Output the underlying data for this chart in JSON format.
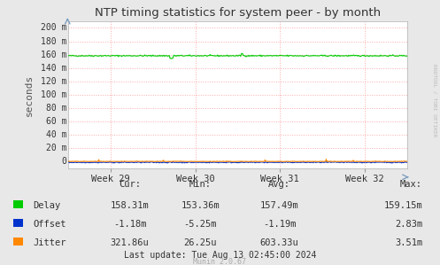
{
  "title": "NTP timing statistics for system peer - by month",
  "ylabel": "seconds",
  "background_color": "#e8e8e8",
  "plot_bg_color": "#ffffff",
  "grid_color": "#ffaaaa",
  "ylim": [
    -10,
    210
  ],
  "yticks": [
    0,
    20,
    40,
    60,
    80,
    100,
    120,
    140,
    160,
    180,
    200
  ],
  "ytick_labels": [
    "0",
    "20 m",
    "40 m",
    "60 m",
    "80 m",
    "100 m",
    "120 m",
    "140 m",
    "160 m",
    "180 m",
    "200 m"
  ],
  "xtick_labels": [
    "Week 29",
    "Week 30",
    "Week 31",
    "Week 32"
  ],
  "delay_color": "#00cc00",
  "offset_color": "#0033cc",
  "jitter_color": "#ff8800",
  "noise_seed": 42,
  "watermark": "RRDTOOL / TOBI OETIKER",
  "munin_version": "Munin 2.0.67",
  "last_update": "Last update: Tue Aug 13 02:45:00 2024",
  "legend_labels": [
    "Delay",
    "Offset",
    "Jitter"
  ],
  "table_headers": [
    "Cur:",
    "Min:",
    "Avg:",
    "Max:"
  ],
  "delay_stats": [
    "158.31m",
    "153.36m",
    "157.49m",
    "159.15m"
  ],
  "offset_stats": [
    "-1.18m",
    "-5.25m",
    "-1.19m",
    "2.83m"
  ],
  "jitter_stats": [
    "321.86u",
    "26.25u",
    "603.33u",
    "3.51m"
  ]
}
